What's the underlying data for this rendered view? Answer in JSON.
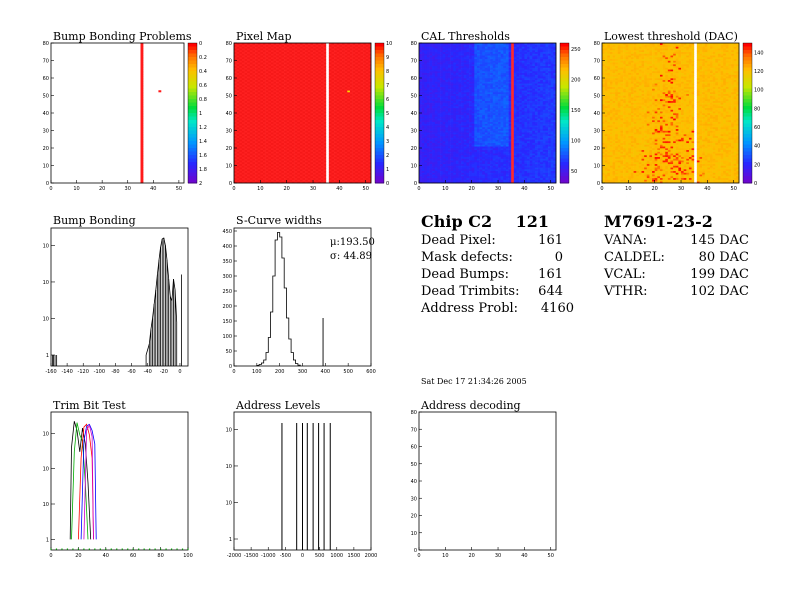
{
  "colors": {
    "bg": "#ffffff",
    "axis": "#000000",
    "red": "#ff1a1a",
    "white": "#ffffff"
  },
  "panels": [
    {
      "id": "bump-bonding-problems",
      "title": "Bump Bonding Problems",
      "kind": "map"
    },
    {
      "id": "pixel-map",
      "title": "Pixel Map",
      "kind": "map"
    },
    {
      "id": "cal-thresholds",
      "title": "CAL Thresholds",
      "kind": "map"
    },
    {
      "id": "lowest-threshold",
      "title": "Lowest threshold (DAC)",
      "kind": "map"
    },
    {
      "id": "bump-bonding",
      "title": "Bump Bonding",
      "kind": "hist"
    },
    {
      "id": "s-curve-widths",
      "title": "S-Curve widths",
      "kind": "hist"
    },
    {
      "id": "trim-bit-test",
      "title": "Trim Bit Test",
      "kind": "hist"
    },
    {
      "id": "address-levels",
      "title": "Address Levels",
      "kind": "hist"
    },
    {
      "id": "address-decoding",
      "title": "Address decoding",
      "kind": "map"
    }
  ],
  "chip_summary": {
    "chip_label": "Chip C2",
    "chip_number": "121",
    "rows": [
      {
        "label": "Dead Pixel:",
        "value": "161"
      },
      {
        "label": "Mask defects:",
        "value": "0"
      },
      {
        "label": "Dead Bumps:",
        "value": "161"
      },
      {
        "label": "Dead Trimbits:",
        "value": "644"
      },
      {
        "label": "Address Probl:",
        "value": "4160"
      }
    ]
  },
  "module_summary": {
    "module_id": "M7691-23-2",
    "rows": [
      {
        "label": "VANA:",
        "value": "145 DAC"
      },
      {
        "label": "CALDEL:",
        "value": "80 DAC"
      },
      {
        "label": "VCAL:",
        "value": "199 DAC"
      },
      {
        "label": "VTHR:",
        "value": "102 DAC"
      }
    ]
  },
  "timestamp": "Sat Dec 17 21:34:26 2005",
  "scurve_stats": {
    "mu": "μ:193.50",
    "sigma": "σ: 44.89"
  },
  "chart_data": [
    {
      "type": "heatmap",
      "title": "Bump Bonding Problems",
      "xlim": [
        0,
        52
      ],
      "ylim": [
        0,
        80
      ],
      "x_ticks": [
        "0",
        "10",
        "20",
        "30",
        "40",
        "50"
      ],
      "y_ticks": [
        "0",
        "10",
        "20",
        "30",
        "40",
        "50",
        "60",
        "70",
        "80"
      ],
      "z_ticks": [
        "0",
        "0.2",
        "0.4",
        "0.6",
        "0.8",
        "1",
        "1.2",
        "1.4",
        "1.6",
        "1.8",
        "2"
      ],
      "red_column_x": 35,
      "isolated_pixel": [
        42,
        52
      ]
    },
    {
      "type": "heatmap",
      "title": "Pixel Map",
      "xlim": [
        0,
        52
      ],
      "ylim": [
        0,
        80
      ],
      "x_ticks": [
        "0",
        "10",
        "20",
        "30",
        "40",
        "50"
      ],
      "y_ticks": [
        "0",
        "10",
        "20",
        "30",
        "40",
        "50",
        "60",
        "70",
        "80"
      ],
      "z_ticks": [
        "0",
        "1",
        "2",
        "3",
        "4",
        "5",
        "6",
        "7",
        "8",
        "9",
        "10"
      ],
      "dead_column_x": 35,
      "isolated_pixel": [
        43,
        52
      ]
    },
    {
      "type": "heatmap",
      "title": "CAL Thresholds",
      "xlim": [
        0,
        52
      ],
      "ylim": [
        0,
        80
      ],
      "x_ticks": [
        "0",
        "10",
        "20",
        "30",
        "40",
        "50"
      ],
      "y_ticks": [
        "0",
        "10",
        "20",
        "30",
        "40",
        "50",
        "60",
        "70",
        "80"
      ],
      "z_ticks": [
        "50",
        "100",
        "150",
        "200",
        "250"
      ],
      "z_range": [
        30,
        260
      ],
      "hot_column_x": 35
    },
    {
      "type": "heatmap",
      "title": "Lowest threshold (DAC)",
      "xlim": [
        0,
        52
      ],
      "ylim": [
        0,
        80
      ],
      "x_ticks": [
        "0",
        "10",
        "20",
        "30",
        "40",
        "50"
      ],
      "y_ticks": [
        "0",
        "10",
        "20",
        "30",
        "40",
        "50",
        "60",
        "70",
        "80"
      ],
      "z_ticks": [
        "0",
        "20",
        "40",
        "60",
        "80",
        "100",
        "120",
        "140"
      ],
      "dead_column_x": 35
    },
    {
      "type": "bar",
      "title": "Bump Bonding",
      "log_y": true,
      "xlim": [
        -160,
        10
      ],
      "ylim": [
        0.5,
        3000
      ],
      "x_ticks": [
        "-160",
        "-140",
        "-120",
        "-100",
        "-80",
        "-60",
        "-40",
        "-20",
        "0"
      ],
      "bins": [
        [
          -158,
          1
        ],
        [
          -157,
          1
        ],
        [
          -155,
          1
        ],
        [
          -153,
          1
        ],
        [
          -42,
          1
        ],
        [
          -38,
          2
        ],
        [
          -36,
          5
        ],
        [
          -34,
          10
        ],
        [
          -32,
          25
        ],
        [
          -30,
          60
        ],
        [
          -28,
          160
        ],
        [
          -26,
          400
        ],
        [
          -24,
          900
        ],
        [
          -22,
          1500
        ],
        [
          -20,
          1600
        ],
        [
          -18,
          1000
        ],
        [
          -16,
          400
        ],
        [
          -14,
          120
        ],
        [
          -12,
          40
        ],
        [
          -10,
          30
        ],
        [
          -8,
          120
        ],
        [
          -6,
          60
        ],
        [
          -4,
          8
        ],
        [
          2,
          160
        ]
      ]
    },
    {
      "type": "bar",
      "title": "S-Curve widths",
      "xlim": [
        0,
        600
      ],
      "ylim": [
        0,
        460
      ],
      "x_ticks": [
        "0",
        "100",
        "200",
        "300",
        "400",
        "500",
        "600"
      ],
      "y_ticks": [
        "0",
        "50",
        "100",
        "150",
        "200",
        "250",
        "300",
        "350",
        "400",
        "450"
      ],
      "bins": [
        [
          100,
          2
        ],
        [
          110,
          5
        ],
        [
          120,
          10
        ],
        [
          130,
          20
        ],
        [
          140,
          45
        ],
        [
          150,
          95
        ],
        [
          160,
          180
        ],
        [
          170,
          300
        ],
        [
          180,
          420
        ],
        [
          190,
          445
        ],
        [
          200,
          430
        ],
        [
          210,
          360
        ],
        [
          220,
          260
        ],
        [
          230,
          160
        ],
        [
          240,
          90
        ],
        [
          250,
          45
        ],
        [
          260,
          20
        ],
        [
          270,
          8
        ],
        [
          280,
          3
        ],
        [
          390,
          160
        ]
      ]
    },
    {
      "type": "line",
      "title": "Trim Bit Test",
      "log_y": true,
      "xlim": [
        0,
        100
      ],
      "ylim": [
        0.5,
        4000
      ],
      "x_ticks": [
        "0",
        "20",
        "40",
        "60",
        "80",
        "100"
      ],
      "series": [
        {
          "color": "#000000",
          "points": [
            [
              14,
              1
            ],
            [
              15,
              400
            ],
            [
              17,
              2200
            ],
            [
              19,
              1200
            ],
            [
              21,
              300
            ],
            [
              23,
              1400
            ],
            [
              25,
              500
            ],
            [
              27,
              40
            ],
            [
              29,
              1
            ]
          ]
        },
        {
          "color": "#00aa00",
          "points": [
            [
              15,
              1
            ],
            [
              17,
              300
            ],
            [
              19,
              2000
            ],
            [
              21,
              900
            ],
            [
              23,
              600
            ],
            [
              25,
              40
            ],
            [
              27,
              1
            ]
          ]
        },
        {
          "color": "#ff0000",
          "points": [
            [
              20,
              1
            ],
            [
              22,
              200
            ],
            [
              24,
              1500
            ],
            [
              26,
              1800
            ],
            [
              28,
              900
            ],
            [
              30,
              200
            ],
            [
              31,
              1
            ]
          ]
        },
        {
          "color": "#0000ff",
          "points": [
            [
              22,
              1
            ],
            [
              24,
              600
            ],
            [
              26,
              1600
            ],
            [
              28,
              1800
            ],
            [
              30,
              1200
            ],
            [
              32,
              500
            ],
            [
              33,
              1
            ]
          ]
        },
        {
          "color": "#cc00cc",
          "points": [
            [
              24,
              1
            ],
            [
              26,
              1200
            ],
            [
              28,
              1700
            ],
            [
              30,
              800
            ],
            [
              31,
              1
            ]
          ]
        }
      ]
    },
    {
      "type": "bar",
      "title": "Address Levels",
      "log_y": true,
      "xlim": [
        -2000,
        2000
      ],
      "ylim": [
        0.5,
        3000
      ],
      "x_ticks": [
        "-2000",
        "-1500",
        "-1000",
        "-500",
        "0",
        "500",
        "1000",
        "1500",
        "2000"
      ],
      "spikes": [
        -600,
        -170,
        0,
        140,
        310,
        470,
        630,
        810
      ]
    },
    {
      "type": "heatmap",
      "title": "Address decoding",
      "xlim": [
        0,
        52
      ],
      "ylim": [
        0,
        80
      ],
      "x_ticks": [
        "0",
        "10",
        "20",
        "30",
        "40",
        "50"
      ],
      "y_ticks": [
        "0",
        "10",
        "20",
        "30",
        "40",
        "50",
        "60",
        "70",
        "80"
      ]
    }
  ]
}
